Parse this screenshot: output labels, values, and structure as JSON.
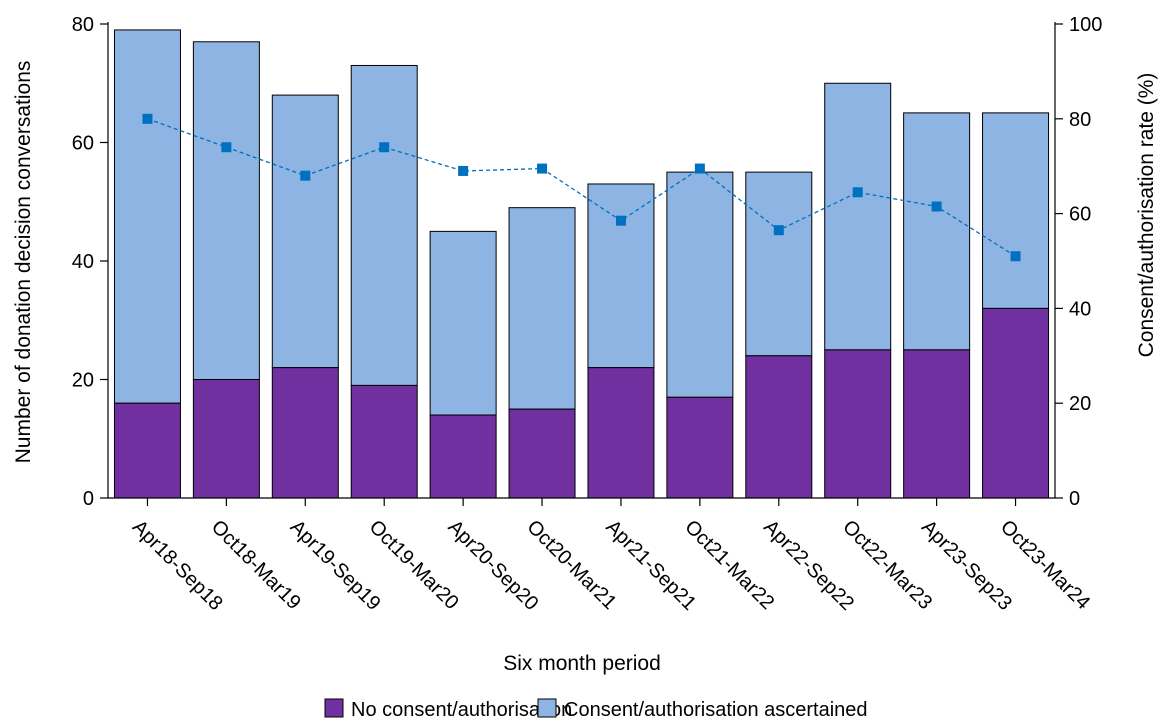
{
  "chart_data": {
    "type": "bar",
    "stacked": true,
    "categories": [
      "Apr18-Sep18",
      "Oct18-Mar19",
      "Apr19-Sep19",
      "Oct19-Mar20",
      "Apr20-Sep20",
      "Oct20-Mar21",
      "Apr21-Sep21",
      "Oct21-Mar22",
      "Apr22-Sep22",
      "Oct22-Mar23",
      "Apr23-Sep23",
      "Oct23-Mar24"
    ],
    "series": [
      {
        "name": "No consent/authorisation",
        "type": "bar",
        "axis": "left",
        "color": "#7030a0",
        "values": [
          16,
          20,
          22,
          19,
          14,
          15,
          22,
          17,
          24,
          25,
          25,
          32
        ]
      },
      {
        "name": "Consent/authorisation ascertained",
        "type": "bar",
        "axis": "left",
        "color": "#8eb4e3",
        "values": [
          63,
          57,
          46,
          54,
          31,
          34,
          31,
          38,
          31,
          45,
          40,
          33
        ]
      },
      {
        "type": "line",
        "axis": "right",
        "color": "#0070c0",
        "values": [
          80,
          74,
          68,
          74,
          69,
          69.5,
          58.5,
          69.5,
          56.5,
          64.5,
          61.5,
          51
        ]
      }
    ],
    "xlabel": "Six month period",
    "ylabel": "Number of donation decision conversations",
    "y2label": "Consent/authorisation rate (%)",
    "ylim": [
      0,
      80
    ],
    "y2lim": [
      0,
      100
    ],
    "yticks": [
      0,
      20,
      40,
      60,
      80
    ],
    "y2ticks": [
      0,
      20,
      40,
      60,
      80,
      100
    ],
    "grid": false,
    "legend_position": "bottom"
  }
}
